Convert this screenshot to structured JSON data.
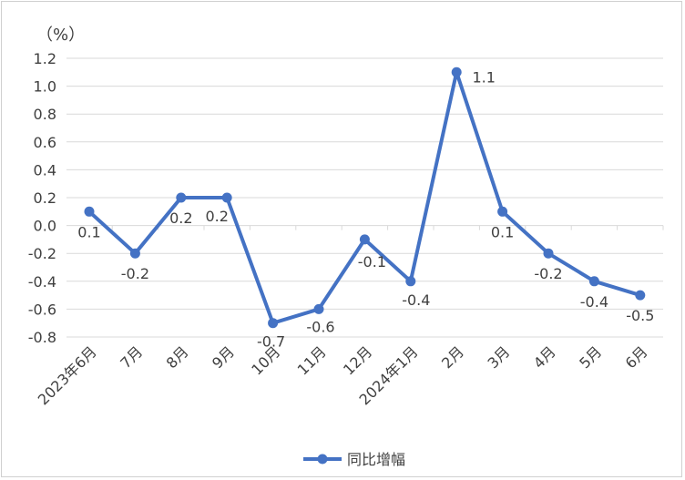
{
  "chart_data": {
    "type": "line",
    "unit_label": "（%）",
    "categories": [
      "2023年6月",
      "7月",
      "8月",
      "9月",
      "10月",
      "11月",
      "12月",
      "2024年1月",
      "2月",
      "3月",
      "4月",
      "5月",
      "6月"
    ],
    "series": [
      {
        "name": "同比增幅",
        "values": [
          0.1,
          -0.2,
          0.2,
          0.2,
          -0.7,
          -0.6,
          -0.1,
          -0.4,
          1.1,
          0.1,
          -0.2,
          -0.4,
          -0.5
        ],
        "labels": [
          "0.1",
          "-0.2",
          "0.2",
          "0.2",
          "-0.7",
          "-0.6",
          "-0.1",
          "-0.4",
          "1.1",
          "0.1",
          "-0.2",
          "-0.4",
          "-0.5"
        ],
        "color": "#4472C4"
      }
    ],
    "ylim": [
      -0.8,
      1.2
    ],
    "yticks": [
      "1.2",
      "1.0",
      "0.8",
      "0.6",
      "0.4",
      "0.2",
      "0.0",
      "-0.2",
      "-0.4",
      "-0.6",
      "-0.8"
    ],
    "grid": true,
    "legend": "bottom-center"
  }
}
